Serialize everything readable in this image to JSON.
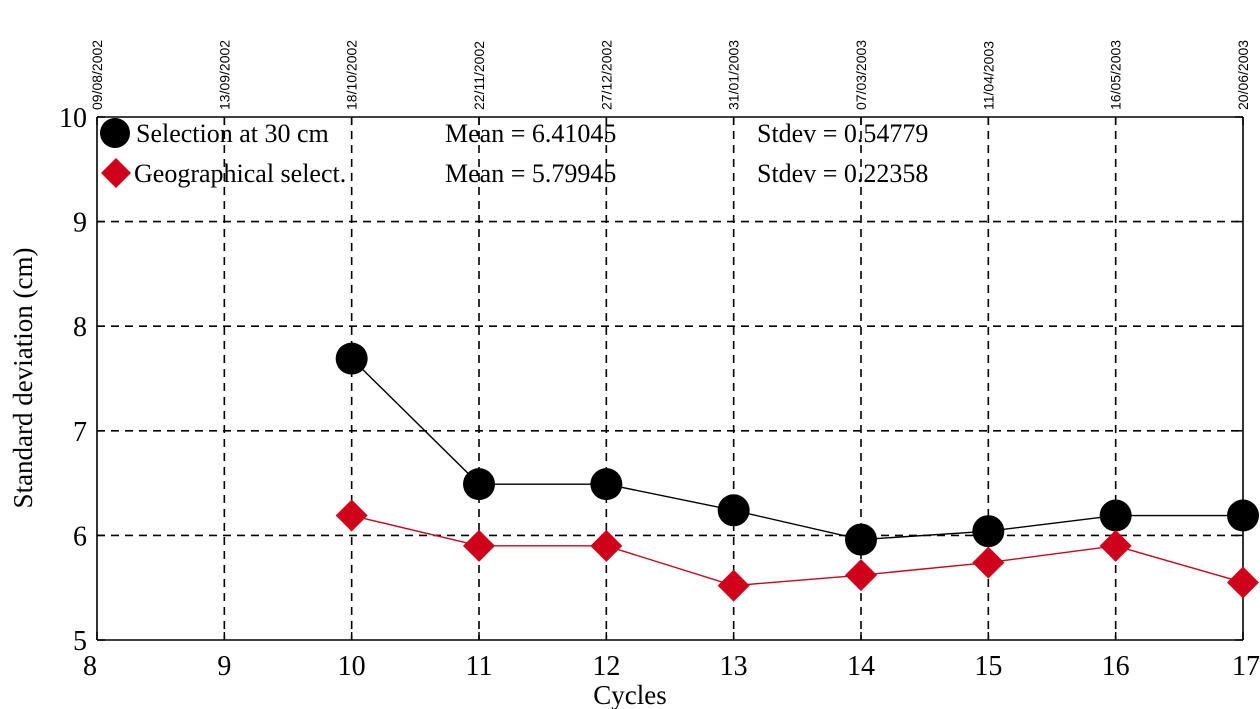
{
  "chart_data": {
    "type": "line",
    "xlabel": "Cycles",
    "ylabel": "Standard deviation (cm)",
    "xlim": [
      8,
      17
    ],
    "ylim": [
      5,
      10
    ],
    "x_ticks": [
      "8",
      "9",
      "10",
      "11",
      "12",
      "13",
      "14",
      "15",
      "16",
      "17"
    ],
    "y_ticks": [
      "5",
      "6",
      "7",
      "8",
      "9",
      "10"
    ],
    "top_axis_dates": [
      "09/08/2002",
      "13/09/2002",
      "18/10/2002",
      "22/11/2002",
      "27/12/2002",
      "31/01/2003",
      "07/03/2003",
      "11/04/2003",
      "16/05/2003",
      "20/06/2003"
    ],
    "grid": "dashed",
    "legend_position": "top-left",
    "series": [
      {
        "name": "Selection at 30 cm",
        "mean_text": "Mean = 6.41045",
        "stdev_text": "Stdev = 0.54779",
        "marker": "circle",
        "color": "#000000",
        "x": [
          10,
          11,
          12,
          13,
          14,
          15,
          16,
          17
        ],
        "y": [
          7.69,
          6.49,
          6.49,
          6.24,
          5.96,
          6.04,
          6.19,
          6.19
        ]
      },
      {
        "name": "Geographical select.",
        "mean_text": "Mean = 5.79945",
        "stdev_text": "Stdev = 0.22358",
        "marker": "diamond",
        "color": "#d0021b",
        "x": [
          10,
          11,
          12,
          13,
          14,
          15,
          16,
          17
        ],
        "y": [
          6.19,
          5.9,
          5.9,
          5.52,
          5.62,
          5.74,
          5.9,
          5.55
        ]
      }
    ]
  }
}
